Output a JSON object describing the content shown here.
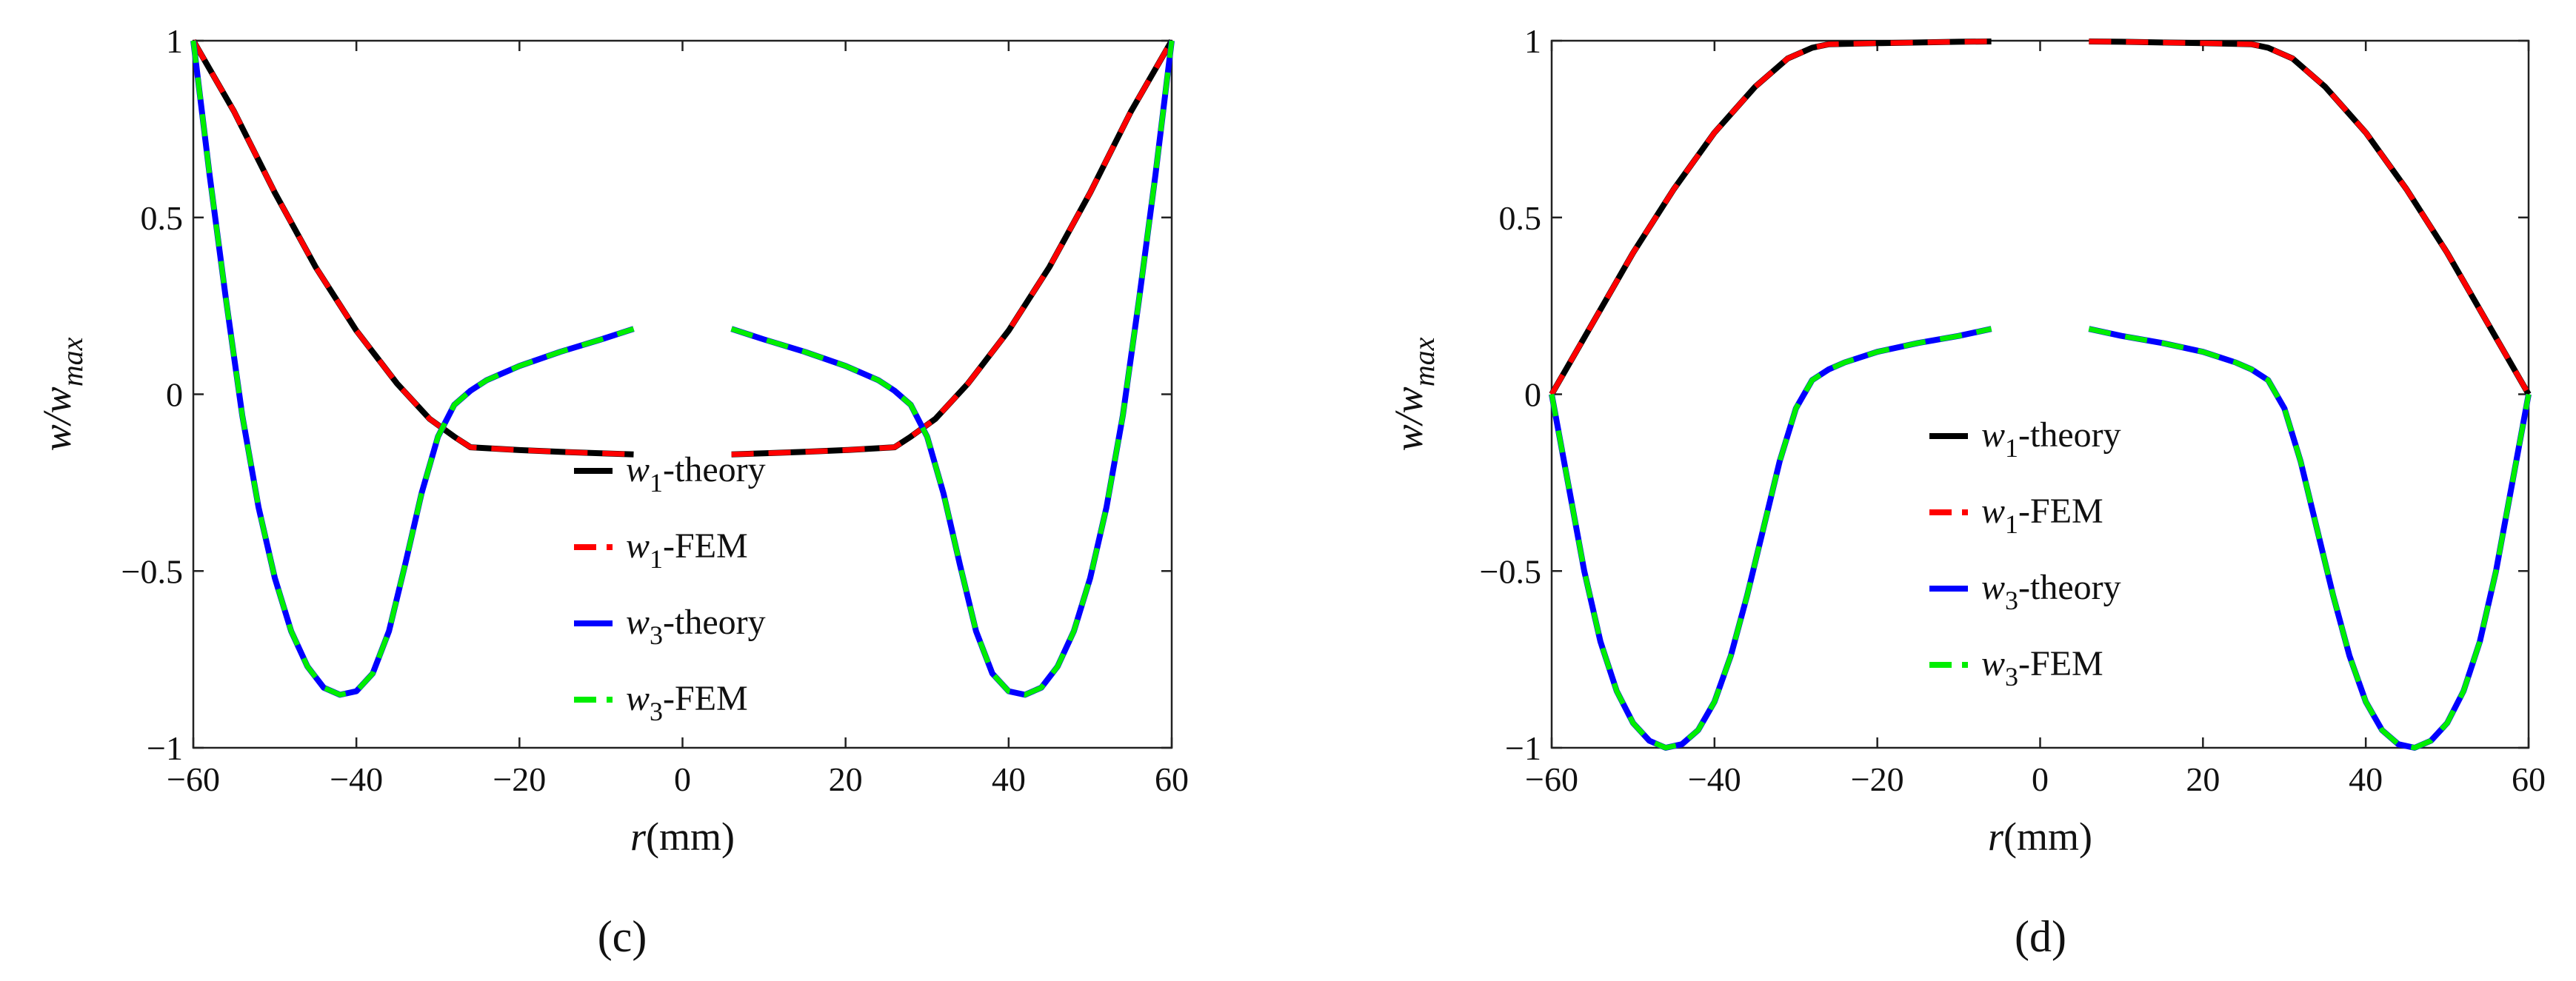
{
  "chart_data": [
    {
      "type": "line",
      "panel_label": "(c)",
      "xlabel_var": "r",
      "xlabel_unit": "(mm)",
      "ylabel_main": "w/w",
      "ylabel_sub": "max",
      "xlim": [
        -60,
        60
      ],
      "ylim": [
        -1,
        1
      ],
      "xticks": [
        -60,
        -40,
        -20,
        0,
        20,
        40,
        60
      ],
      "yticks": [
        1,
        0.5,
        0,
        -0.5,
        -1
      ],
      "xtick_labels": [
        "−60",
        "−40",
        "−20",
        "0",
        "20",
        "40",
        "60"
      ],
      "ytick_labels": [
        "1",
        "0.5",
        "0",
        "−0.5",
        "−1"
      ],
      "legend_position": "center",
      "series": [
        {
          "name": "w1-theory",
          "legend_var": "w",
          "legend_sub": "1",
          "legend_rest": "-theory",
          "color": "#000000",
          "dashed": false,
          "group": "w1",
          "segments": [
            [
              [
                -60,
                1.0
              ],
              [
                -55,
                0.8
              ],
              [
                -50,
                0.57
              ],
              [
                -45,
                0.36
              ],
              [
                -40,
                0.18
              ],
              [
                -35,
                0.03
              ],
              [
                -31,
                -0.07
              ],
              [
                -28,
                -0.12
              ],
              [
                -26,
                -0.15
              ],
              [
                -20,
                -0.158
              ],
              [
                -15,
                -0.163
              ],
              [
                -10,
                -0.167
              ],
              [
                -6,
                -0.17
              ]
            ],
            [
              [
                6,
                -0.17
              ],
              [
                10,
                -0.167
              ],
              [
                15,
                -0.163
              ],
              [
                20,
                -0.158
              ],
              [
                26,
                -0.15
              ],
              [
                28,
                -0.12
              ],
              [
                31,
                -0.07
              ],
              [
                35,
                0.03
              ],
              [
                40,
                0.18
              ],
              [
                45,
                0.36
              ],
              [
                50,
                0.57
              ],
              [
                55,
                0.8
              ],
              [
                60,
                1.0
              ]
            ]
          ]
        },
        {
          "name": "w1-FEM",
          "legend_var": "w",
          "legend_sub": "1",
          "legend_rest": "-FEM",
          "color": "#ff0000",
          "dashed": true,
          "group": "w1"
        },
        {
          "name": "w3-theory",
          "legend_var": "w",
          "legend_sub": "3",
          "legend_rest": "-theory",
          "color": "#0000ff",
          "dashed": false,
          "group": "w3",
          "segments": [
            [
              [
                -60,
                1.0
              ],
              [
                -58,
                0.62
              ],
              [
                -56,
                0.27
              ],
              [
                -54,
                -0.06
              ],
              [
                -52,
                -0.32
              ],
              [
                -50,
                -0.52
              ],
              [
                -48,
                -0.67
              ],
              [
                -46,
                -0.77
              ],
              [
                -44,
                -0.83
              ],
              [
                -42,
                -0.85
              ],
              [
                -40,
                -0.84
              ],
              [
                -38,
                -0.79
              ],
              [
                -36,
                -0.67
              ],
              [
                -34,
                -0.48
              ],
              [
                -32,
                -0.28
              ],
              [
                -30,
                -0.12
              ],
              [
                -28,
                -0.03
              ],
              [
                -26,
                0.01
              ],
              [
                -24,
                0.04
              ],
              [
                -20,
                0.08
              ],
              [
                -15,
                0.12
              ],
              [
                -10,
                0.155
              ],
              [
                -6,
                0.185
              ]
            ],
            [
              [
                6,
                0.185
              ],
              [
                10,
                0.155
              ],
              [
                15,
                0.12
              ],
              [
                20,
                0.08
              ],
              [
                24,
                0.04
              ],
              [
                26,
                0.01
              ],
              [
                28,
                -0.03
              ],
              [
                30,
                -0.12
              ],
              [
                32,
                -0.28
              ],
              [
                34,
                -0.48
              ],
              [
                36,
                -0.67
              ],
              [
                38,
                -0.79
              ],
              [
                40,
                -0.84
              ],
              [
                42,
                -0.85
              ],
              [
                44,
                -0.83
              ],
              [
                46,
                -0.77
              ],
              [
                48,
                -0.67
              ],
              [
                50,
                -0.52
              ],
              [
                52,
                -0.32
              ],
              [
                54,
                -0.06
              ],
              [
                56,
                0.27
              ],
              [
                58,
                0.62
              ],
              [
                60,
                1.0
              ]
            ]
          ]
        },
        {
          "name": "w3-FEM",
          "legend_var": "w",
          "legend_sub": "3",
          "legend_rest": "-FEM",
          "color": "#00ee00",
          "dashed": true,
          "group": "w3"
        }
      ]
    },
    {
      "type": "line",
      "panel_label": "(d)",
      "xlabel_var": "r",
      "xlabel_unit": "(mm)",
      "ylabel_main": "w/w",
      "ylabel_sub": "max",
      "xlim": [
        -60,
        60
      ],
      "ylim": [
        -1,
        1
      ],
      "xticks": [
        -60,
        -40,
        -20,
        0,
        20,
        40,
        60
      ],
      "yticks": [
        1,
        0.5,
        0,
        -0.5,
        -1
      ],
      "xtick_labels": [
        "−60",
        "−40",
        "−20",
        "0",
        "20",
        "40",
        "60"
      ],
      "ytick_labels": [
        "1",
        "0.5",
        "0",
        "−0.5",
        "−1"
      ],
      "legend_position": "center",
      "series": [
        {
          "name": "w1-theory",
          "legend_var": "w",
          "legend_sub": "1",
          "legend_rest": "-theory",
          "color": "#000000",
          "dashed": false,
          "group": "w1",
          "segments": [
            [
              [
                -60,
                0.0
              ],
              [
                -55,
                0.2
              ],
              [
                -50,
                0.4
              ],
              [
                -45,
                0.58
              ],
              [
                -40,
                0.74
              ],
              [
                -35,
                0.87
              ],
              [
                -31,
                0.95
              ],
              [
                -28,
                0.98
              ],
              [
                -26,
                0.99
              ],
              [
                -20,
                0.993
              ],
              [
                -15,
                0.995
              ],
              [
                -10,
                0.997
              ],
              [
                -6,
                0.998
              ]
            ],
            [
              [
                6,
                0.998
              ],
              [
                10,
                0.997
              ],
              [
                15,
                0.995
              ],
              [
                20,
                0.993
              ],
              [
                26,
                0.99
              ],
              [
                28,
                0.98
              ],
              [
                31,
                0.95
              ],
              [
                35,
                0.87
              ],
              [
                40,
                0.74
              ],
              [
                45,
                0.58
              ],
              [
                50,
                0.4
              ],
              [
                55,
                0.2
              ],
              [
                60,
                0.0
              ]
            ]
          ]
        },
        {
          "name": "w1-FEM",
          "legend_var": "w",
          "legend_sub": "1",
          "legend_rest": "-FEM",
          "color": "#ff0000",
          "dashed": true,
          "group": "w1"
        },
        {
          "name": "w3-theory",
          "legend_var": "w",
          "legend_sub": "3",
          "legend_rest": "-theory",
          "color": "#0000ff",
          "dashed": false,
          "group": "w3",
          "segments": [
            [
              [
                -60,
                0.0
              ],
              [
                -58,
                -0.25
              ],
              [
                -56,
                -0.5
              ],
              [
                -54,
                -0.7
              ],
              [
                -52,
                -0.84
              ],
              [
                -50,
                -0.93
              ],
              [
                -48,
                -0.98
              ],
              [
                -46,
                -1.0
              ],
              [
                -44,
                -0.99
              ],
              [
                -42,
                -0.95
              ],
              [
                -40,
                -0.87
              ],
              [
                -38,
                -0.74
              ],
              [
                -36,
                -0.57
              ],
              [
                -34,
                -0.38
              ],
              [
                -32,
                -0.19
              ],
              [
                -30,
                -0.04
              ],
              [
                -28,
                0.04
              ],
              [
                -26,
                0.07
              ],
              [
                -24,
                0.09
              ],
              [
                -20,
                0.12
              ],
              [
                -15,
                0.145
              ],
              [
                -10,
                0.165
              ],
              [
                -6,
                0.185
              ]
            ],
            [
              [
                6,
                0.185
              ],
              [
                10,
                0.165
              ],
              [
                15,
                0.145
              ],
              [
                20,
                0.12
              ],
              [
                24,
                0.09
              ],
              [
                26,
                0.07
              ],
              [
                28,
                0.04
              ],
              [
                30,
                -0.04
              ],
              [
                32,
                -0.19
              ],
              [
                34,
                -0.38
              ],
              [
                36,
                -0.57
              ],
              [
                38,
                -0.74
              ],
              [
                40,
                -0.87
              ],
              [
                42,
                -0.95
              ],
              [
                44,
                -0.99
              ],
              [
                46,
                -1.0
              ],
              [
                48,
                -0.98
              ],
              [
                50,
                -0.93
              ],
              [
                52,
                -0.84
              ],
              [
                54,
                -0.7
              ],
              [
                56,
                -0.5
              ],
              [
                58,
                -0.25
              ],
              [
                60,
                0.0
              ]
            ]
          ]
        },
        {
          "name": "w3-FEM",
          "legend_var": "w",
          "legend_sub": "3",
          "legend_rest": "-FEM",
          "color": "#00ee00",
          "dashed": true,
          "group": "w3"
        }
      ]
    }
  ]
}
